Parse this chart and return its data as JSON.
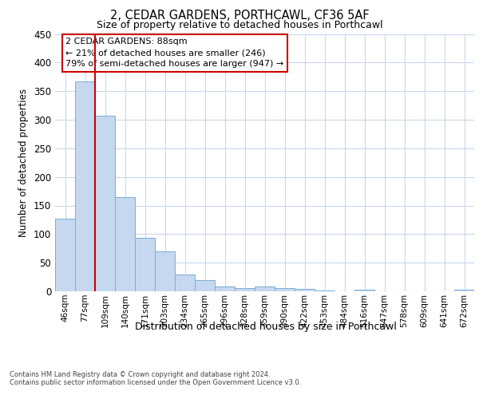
{
  "title_line1": "2, CEDAR GARDENS, PORTHCAWL, CF36 5AF",
  "title_line2": "Size of property relative to detached houses in Porthcawl",
  "xlabel": "Distribution of detached houses by size in Porthcawl",
  "ylabel": "Number of detached properties",
  "footnote": "Contains HM Land Registry data © Crown copyright and database right 2024.\nContains public sector information licensed under the Open Government Licence v3.0.",
  "bar_labels": [
    "46sqm",
    "77sqm",
    "109sqm",
    "140sqm",
    "171sqm",
    "203sqm",
    "234sqm",
    "265sqm",
    "296sqm",
    "328sqm",
    "359sqm",
    "390sqm",
    "422sqm",
    "453sqm",
    "484sqm",
    "516sqm",
    "547sqm",
    "578sqm",
    "609sqm",
    "641sqm",
    "672sqm"
  ],
  "bar_values": [
    127,
    367,
    307,
    165,
    94,
    70,
    30,
    20,
    8,
    6,
    8,
    5,
    4,
    1,
    0,
    3,
    0,
    0,
    0,
    0,
    3
  ],
  "bar_color": "#c5d8f0",
  "bar_edge_color": "#7aadd4",
  "background_color": "#ffffff",
  "grid_color": "#c8d8ea",
  "annotation_line1": "2 CEDAR GARDENS: 88sqm",
  "annotation_line2": "← 21% of detached houses are smaller (246)",
  "annotation_line3": "79% of semi-detached houses are larger (947) →",
  "vline_x": 1.5,
  "vline_color": "#cc0000",
  "ylim": [
    0,
    450
  ],
  "yticks": [
    0,
    50,
    100,
    150,
    200,
    250,
    300,
    350,
    400,
    450
  ]
}
